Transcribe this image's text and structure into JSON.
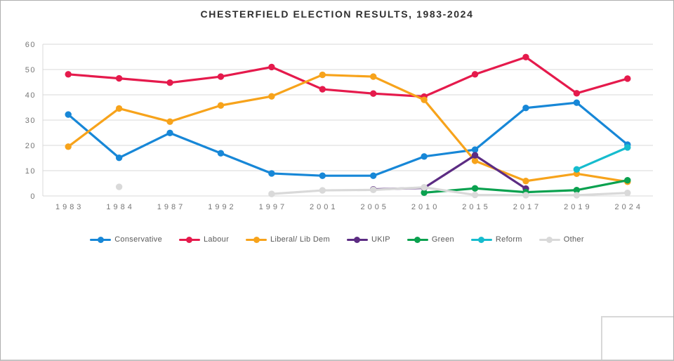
{
  "title": "CHESTERFIELD ELECTION RESULTS, 1983-2024",
  "chart_data": {
    "type": "line",
    "title": "CHESTERFIELD ELECTION RESULTS, 1983-2024",
    "categories": [
      "1983",
      "1984",
      "1987",
      "1992",
      "1997",
      "2001",
      "2005",
      "2010",
      "2015",
      "2017",
      "2019",
      "2024"
    ],
    "series": [
      {
        "name": "Conservative",
        "color": "#1787d7",
        "values": [
          32.2,
          15.1,
          24.9,
          16.9,
          8.9,
          8.0,
          8.0,
          15.6,
          18.3,
          34.8,
          36.9,
          20.3
        ]
      },
      {
        "name": "Labour",
        "color": "#e51a4c",
        "values": [
          48.1,
          46.5,
          44.8,
          47.2,
          51.0,
          42.2,
          40.5,
          39.3,
          48.1,
          54.9,
          40.6,
          46.4
        ]
      },
      {
        "name": "Liberal/ Lib Dem",
        "color": "#f7a31b",
        "values": [
          19.5,
          34.6,
          29.4,
          35.8,
          39.4,
          47.9,
          47.2,
          38.0,
          13.9,
          5.9,
          8.8,
          5.6
        ]
      },
      {
        "name": "UKIP",
        "color": "#5c2c83",
        "values": [
          null,
          null,
          null,
          null,
          null,
          null,
          2.6,
          3.2,
          16.1,
          2.9,
          null,
          null
        ]
      },
      {
        "name": "Green",
        "color": "#0aa14f",
        "values": [
          null,
          null,
          null,
          null,
          null,
          null,
          null,
          1.3,
          3.0,
          1.5,
          2.3,
          6.2
        ]
      },
      {
        "name": "Reform",
        "color": "#16bcce",
        "values": [
          null,
          null,
          null,
          null,
          null,
          null,
          null,
          null,
          null,
          null,
          10.5,
          19.2
        ]
      },
      {
        "name": "Other",
        "color": "#d9d9d9",
        "values": [
          null,
          3.6,
          null,
          null,
          0.8,
          2.2,
          2.4,
          3.4,
          0.4,
          0.3,
          0.3,
          1.2
        ]
      }
    ],
    "ylim": [
      0,
      60
    ],
    "yticks": [
      0,
      10,
      20,
      30,
      40,
      50,
      60
    ],
    "grid": true,
    "gridline_color": "#d9d9d9",
    "axis_label_color": "#767676",
    "legend_position": "bottom"
  }
}
